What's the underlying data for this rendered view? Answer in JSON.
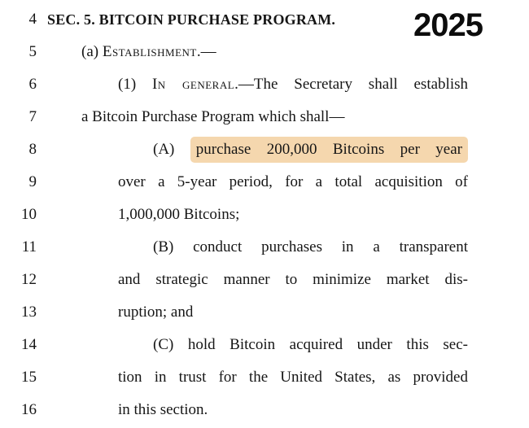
{
  "page": {
    "year_stamp": "2025"
  },
  "colors": {
    "highlight": "#f5d7ae",
    "text": "#161616",
    "background": "#ffffff"
  },
  "document": {
    "lines": [
      {
        "num": "4",
        "text": "SEC. 5. BITCOIN PURCHASE PROGRAM."
      },
      {
        "num": "5",
        "pre": "(a) ",
        "smallcaps": "Establishment",
        "post": ".—"
      },
      {
        "num": "6",
        "pre": "(1) ",
        "smallcaps": "In general",
        "post": ".—The Secretary shall establish"
      },
      {
        "num": "7",
        "text": "a Bitcoin Purchase Program which shall—"
      },
      {
        "num": "8",
        "pre": "(A) ",
        "highlight": "purchase 200,000 Bitcoins per year"
      },
      {
        "num": "9",
        "text": "over a 5-year period, for a total acquisition of"
      },
      {
        "num": "10",
        "text": "1,000,000 Bitcoins;"
      },
      {
        "num": "11",
        "text": "(B) conduct purchases in a transparent"
      },
      {
        "num": "12",
        "text": "and strategic manner to minimize market dis-"
      },
      {
        "num": "13",
        "text": "ruption; and"
      },
      {
        "num": "14",
        "text": "(C) hold Bitcoin acquired under this sec-"
      },
      {
        "num": "15",
        "text": "tion in trust for the United States, as provided"
      },
      {
        "num": "16",
        "text": "in this section."
      }
    ]
  }
}
